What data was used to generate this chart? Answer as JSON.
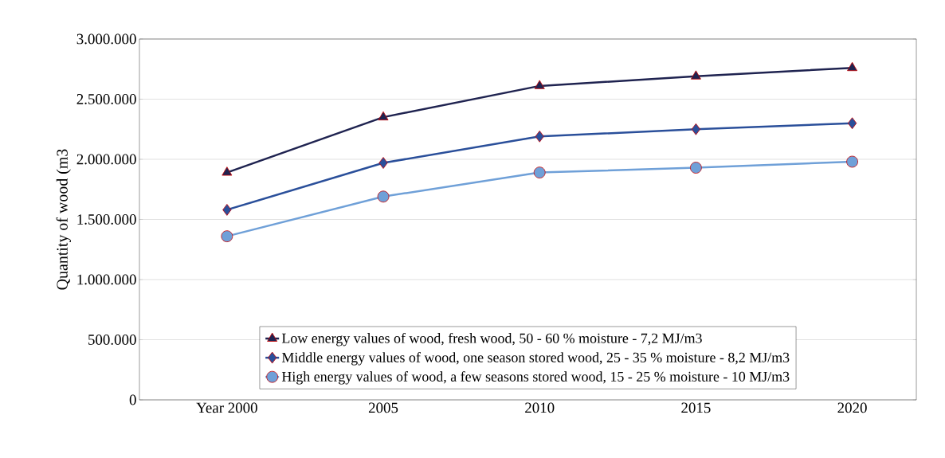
{
  "chart_data": {
    "type": "line",
    "ylabel": "Quantity of wood (m3",
    "categories": [
      "Year 2000",
      "2005",
      "2010",
      "2015",
      "2020"
    ],
    "ylim": [
      0,
      3000000
    ],
    "yticks": [
      {
        "value": 0,
        "label": "0"
      },
      {
        "value": 500000,
        "label": "500.000"
      },
      {
        "value": 1000000,
        "label": "1.000.000"
      },
      {
        "value": 1500000,
        "label": "1.500.000"
      },
      {
        "value": 2000000,
        "label": "2.000.000"
      },
      {
        "value": 2500000,
        "label": "2.500.000"
      },
      {
        "value": 3000000,
        "label": "3.000.000"
      }
    ],
    "grid": "y",
    "legend": "bottom",
    "series": [
      {
        "name": "Low energy values of wood, fresh wood, 50 - 60 % moisture - 7,2 MJ/m3",
        "color": "#1f2350",
        "marker": "triangle",
        "values": [
          1890000,
          2350000,
          2610000,
          2690000,
          2760000
        ]
      },
      {
        "name": "Middle energy values of wood, one season stored wood, 25 - 35 % moisture - 8,2 MJ/m3",
        "color": "#2a4f9a",
        "marker": "diamond",
        "values": [
          1580000,
          1970000,
          2190000,
          2250000,
          2300000
        ]
      },
      {
        "name": "High energy values of wood, a few seasons stored wood, 15 - 25 % moisture - 10 MJ/m3",
        "color": "#6fa0d8",
        "marker": "circle",
        "values": [
          1360000,
          1690000,
          1890000,
          1930000,
          1980000
        ]
      }
    ]
  }
}
